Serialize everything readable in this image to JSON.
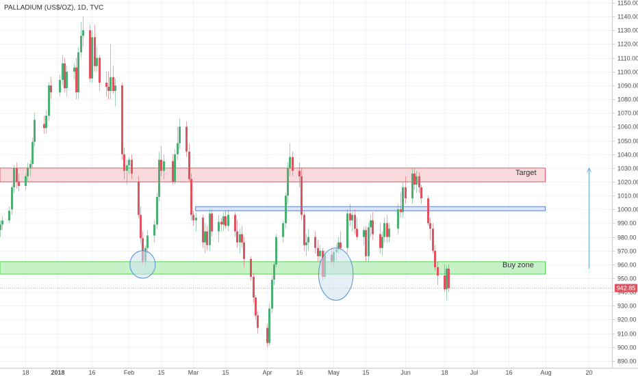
{
  "chart_title": "PALLADIUM (US$/OZ), 1D, TVC",
  "colors": {
    "up": "#4caf72",
    "down": "#e0525e",
    "grid": "#f0f3fa",
    "axis_text": "#4a4a4a",
    "target_fill": "#f7d4d6",
    "target_stroke": "#e05a64",
    "buy_fill": "#bdf0bd",
    "buy_stroke": "#4cd64c",
    "blue_fill": "#d6e2f7",
    "blue_stroke": "#5b83d6",
    "ellipse_fill": "#cfe2f3",
    "ellipse_stroke": "#4f8fd6",
    "arrow": "#6fa8dc",
    "price_tag": "#e0525e"
  },
  "annotations": {
    "target_label": "Target",
    "buy_zone_label": "Buy zone"
  },
  "chart_data": {
    "type": "candlestick",
    "title": "PALLADIUM (US$/OZ), 1D, TVC",
    "xlabel": "",
    "ylabel": "",
    "ylim": [
      885,
      1152
    ],
    "grid": true,
    "last_price": 942.85,
    "last_price_label": "942.85",
    "y_ticks": [
      890,
      900,
      910,
      920,
      930,
      940,
      950,
      960,
      970,
      980,
      990,
      1000,
      1010,
      1020,
      1030,
      1040,
      1050,
      1060,
      1070,
      1080,
      1090,
      1100,
      1110,
      1120,
      1130,
      1140,
      1150
    ],
    "y_tick_labels": [
      "890.00",
      "900.00",
      "910.00",
      "920.00",
      "930.00",
      "940.00",
      "950.00",
      "960.00",
      "970.00",
      "980.00",
      "990.00",
      "1000.00",
      "1010.00",
      "1020.00",
      "1030.00",
      "1040.00",
      "1050.00",
      "1060.00",
      "1070.00",
      "1080.00",
      "1090.00",
      "1100.00",
      "1110.00",
      "1120.00",
      "1130.00",
      "1140.00",
      "1150.00"
    ],
    "x_ticks": [
      {
        "date": "2017-12-18",
        "label": "18"
      },
      {
        "date": "2018-01-01",
        "label": "2018",
        "bold": true
      },
      {
        "date": "2018-01-16",
        "label": "16"
      },
      {
        "date": "2018-02-01",
        "label": "Feb"
      },
      {
        "date": "2018-02-15",
        "label": "15"
      },
      {
        "date": "2018-03-01",
        "label": "Mar"
      },
      {
        "date": "2018-03-15",
        "label": "15"
      },
      {
        "date": "2018-04-02",
        "label": "Apr"
      },
      {
        "date": "2018-04-16",
        "label": "16"
      },
      {
        "date": "2018-05-01",
        "label": "May"
      },
      {
        "date": "2018-05-15",
        "label": "15"
      },
      {
        "date": "2018-06-01",
        "label": "Jun"
      },
      {
        "date": "2018-06-18",
        "label": "18"
      },
      {
        "date": "2018-07-01",
        "label": "Jul"
      },
      {
        "date": "2018-07-16",
        "label": "16"
      },
      {
        "date": "2018-08-01",
        "label": "Aug"
      },
      {
        "date": "2018-08-20",
        "label": "20"
      }
    ],
    "x_domain": [
      "2017-12-07",
      "2018-08-30"
    ],
    "zones": [
      {
        "name": "target",
        "y_low": 1020,
        "y_high": 1030,
        "x_start": "2017-12-07",
        "x_end": "2018-08-01"
      },
      {
        "name": "resistance",
        "y_low": 999,
        "y_high": 1002,
        "x_start": "2018-03-02",
        "x_end": "2018-08-01"
      },
      {
        "name": "buy-zone",
        "y_low": 953,
        "y_high": 962,
        "x_start": "2017-12-07",
        "x_end": "2018-08-01"
      }
    ],
    "circles": [
      {
        "date": "2018-02-07",
        "price": 960,
        "date_radius_days": 5.5,
        "price_radius": 10
      },
      {
        "date": "2018-05-02",
        "price": 953,
        "date_radius_days": 7.5,
        "price_radius": 19
      }
    ],
    "target_arrow": {
      "date": "2018-08-20",
      "from": 957,
      "to": 1030
    },
    "candles": [
      {
        "d": "2017-12-07",
        "o": 985,
        "h": 992,
        "l": 980,
        "c": 989
      },
      {
        "d": "2017-12-08",
        "o": 989,
        "h": 995,
        "l": 985,
        "c": 992
      },
      {
        "d": "2017-12-11",
        "o": 992,
        "h": 1002,
        "l": 990,
        "c": 999
      },
      {
        "d": "2017-12-12",
        "o": 1000,
        "h": 1018,
        "l": 996,
        "c": 1016
      },
      {
        "d": "2017-12-13",
        "o": 1016,
        "h": 1032,
        "l": 1012,
        "c": 1030
      },
      {
        "d": "2017-12-14",
        "o": 1030,
        "h": 1034,
        "l": 1015,
        "c": 1020
      },
      {
        "d": "2017-12-15",
        "o": 1020,
        "h": 1026,
        "l": 1013,
        "c": 1017
      },
      {
        "d": "2017-12-18",
        "o": 1017,
        "h": 1026,
        "l": 1014,
        "c": 1024
      },
      {
        "d": "2017-12-19",
        "o": 1024,
        "h": 1034,
        "l": 1020,
        "c": 1030
      },
      {
        "d": "2017-12-20",
        "o": 1030,
        "h": 1036,
        "l": 1024,
        "c": 1033
      },
      {
        "d": "2017-12-21",
        "o": 1033,
        "h": 1052,
        "l": 1030,
        "c": 1049
      },
      {
        "d": "2017-12-22",
        "o": 1049,
        "h": 1070,
        "l": 1046,
        "c": 1065
      },
      {
        "d": "2017-12-26",
        "o": 1062,
        "h": 1068,
        "l": 1055,
        "c": 1059
      },
      {
        "d": "2017-12-27",
        "o": 1059,
        "h": 1072,
        "l": 1055,
        "c": 1068
      },
      {
        "d": "2017-12-28",
        "o": 1068,
        "h": 1092,
        "l": 1064,
        "c": 1090
      },
      {
        "d": "2017-12-29",
        "o": 1090,
        "h": 1096,
        "l": 1080,
        "c": 1085
      },
      {
        "d": "2018-01-02",
        "o": 1085,
        "h": 1098,
        "l": 1082,
        "c": 1094
      },
      {
        "d": "2018-01-03",
        "o": 1094,
        "h": 1112,
        "l": 1090,
        "c": 1106
      },
      {
        "d": "2018-01-04",
        "o": 1106,
        "h": 1110,
        "l": 1085,
        "c": 1088
      },
      {
        "d": "2018-01-05",
        "o": 1088,
        "h": 1104,
        "l": 1082,
        "c": 1100
      },
      {
        "d": "2018-01-08",
        "o": 1100,
        "h": 1106,
        "l": 1094,
        "c": 1103
      },
      {
        "d": "2018-01-09",
        "o": 1103,
        "h": 1110,
        "l": 1080,
        "c": 1085
      },
      {
        "d": "2018-01-10",
        "o": 1085,
        "h": 1118,
        "l": 1080,
        "c": 1114
      },
      {
        "d": "2018-01-11",
        "o": 1114,
        "h": 1136,
        "l": 1110,
        "c": 1126
      },
      {
        "d": "2018-01-12",
        "o": 1126,
        "h": 1140,
        "l": 1118,
        "c": 1130
      },
      {
        "d": "2018-01-15",
        "o": 1130,
        "h": 1134,
        "l": 1092,
        "c": 1095
      },
      {
        "d": "2018-01-16",
        "o": 1095,
        "h": 1130,
        "l": 1092,
        "c": 1125
      },
      {
        "d": "2018-01-17",
        "o": 1125,
        "h": 1134,
        "l": 1100,
        "c": 1104
      },
      {
        "d": "2018-01-18",
        "o": 1104,
        "h": 1118,
        "l": 1100,
        "c": 1110
      },
      {
        "d": "2018-01-19",
        "o": 1110,
        "h": 1112,
        "l": 1086,
        "c": 1092
      },
      {
        "d": "2018-01-22",
        "o": 1092,
        "h": 1100,
        "l": 1082,
        "c": 1089
      },
      {
        "d": "2018-01-23",
        "o": 1089,
        "h": 1100,
        "l": 1080,
        "c": 1086
      },
      {
        "d": "2018-01-24",
        "o": 1086,
        "h": 1120,
        "l": 1080,
        "c": 1096
      },
      {
        "d": "2018-01-25",
        "o": 1096,
        "h": 1104,
        "l": 1084,
        "c": 1086
      },
      {
        "d": "2018-01-26",
        "o": 1086,
        "h": 1095,
        "l": 1075,
        "c": 1090
      },
      {
        "d": "2018-01-29",
        "o": 1090,
        "h": 1092,
        "l": 1036,
        "c": 1040
      },
      {
        "d": "2018-01-30",
        "o": 1040,
        "h": 1045,
        "l": 1022,
        "c": 1028
      },
      {
        "d": "2018-01-31",
        "o": 1028,
        "h": 1036,
        "l": 1018,
        "c": 1032
      },
      {
        "d": "2018-02-01",
        "o": 1032,
        "h": 1038,
        "l": 1026,
        "c": 1036
      },
      {
        "d": "2018-02-02",
        "o": 1036,
        "h": 1040,
        "l": 1022,
        "c": 1026
      },
      {
        "d": "2018-02-05",
        "o": 1020,
        "h": 1024,
        "l": 994,
        "c": 996
      },
      {
        "d": "2018-02-06",
        "o": 996,
        "h": 1002,
        "l": 975,
        "c": 979
      },
      {
        "d": "2018-02-07",
        "o": 979,
        "h": 984,
        "l": 960,
        "c": 962
      },
      {
        "d": "2018-02-08",
        "o": 962,
        "h": 974,
        "l": 958,
        "c": 972
      },
      {
        "d": "2018-02-09",
        "o": 972,
        "h": 985,
        "l": 968,
        "c": 981
      },
      {
        "d": "2018-02-12",
        "o": 981,
        "h": 992,
        "l": 976,
        "c": 989
      },
      {
        "d": "2018-02-13",
        "o": 989,
        "h": 1012,
        "l": 986,
        "c": 1009
      },
      {
        "d": "2018-02-14",
        "o": 1009,
        "h": 1042,
        "l": 1006,
        "c": 1036
      },
      {
        "d": "2018-02-15",
        "o": 1036,
        "h": 1046,
        "l": 1024,
        "c": 1028
      },
      {
        "d": "2018-02-16",
        "o": 1028,
        "h": 1040,
        "l": 1022,
        "c": 1035
      },
      {
        "d": "2018-02-20",
        "o": 1035,
        "h": 1040,
        "l": 1018,
        "c": 1020
      },
      {
        "d": "2018-02-21",
        "o": 1020,
        "h": 1044,
        "l": 1018,
        "c": 1040
      },
      {
        "d": "2018-02-22",
        "o": 1040,
        "h": 1060,
        "l": 1036,
        "c": 1048
      },
      {
        "d": "2018-02-23",
        "o": 1048,
        "h": 1066,
        "l": 1044,
        "c": 1060
      },
      {
        "d": "2018-02-26",
        "o": 1060,
        "h": 1064,
        "l": 1038,
        "c": 1042
      },
      {
        "d": "2018-02-27",
        "o": 1042,
        "h": 1048,
        "l": 1020,
        "c": 1022
      },
      {
        "d": "2018-02-28",
        "o": 1022,
        "h": 1026,
        "l": 992,
        "c": 996
      },
      {
        "d": "2018-03-01",
        "o": 996,
        "h": 999,
        "l": 988,
        "c": 992
      },
      {
        "d": "2018-03-02",
        "o": 992,
        "h": 998,
        "l": 984,
        "c": 994
      },
      {
        "d": "2018-03-05",
        "o": 994,
        "h": 996,
        "l": 972,
        "c": 976
      },
      {
        "d": "2018-03-06",
        "o": 976,
        "h": 990,
        "l": 968,
        "c": 984
      },
      {
        "d": "2018-03-07",
        "o": 984,
        "h": 988,
        "l": 970,
        "c": 974
      },
      {
        "d": "2018-03-08",
        "o": 974,
        "h": 1000,
        "l": 970,
        "c": 997
      },
      {
        "d": "2018-03-09",
        "o": 997,
        "h": 1000,
        "l": 980,
        "c": 984
      },
      {
        "d": "2018-03-12",
        "o": 984,
        "h": 996,
        "l": 976,
        "c": 991
      },
      {
        "d": "2018-03-13",
        "o": 991,
        "h": 994,
        "l": 984,
        "c": 989
      },
      {
        "d": "2018-03-14",
        "o": 989,
        "h": 998,
        "l": 984,
        "c": 995
      },
      {
        "d": "2018-03-15",
        "o": 995,
        "h": 999,
        "l": 986,
        "c": 988
      },
      {
        "d": "2018-03-16",
        "o": 988,
        "h": 1000,
        "l": 984,
        "c": 996
      },
      {
        "d": "2018-03-19",
        "o": 996,
        "h": 998,
        "l": 980,
        "c": 984
      },
      {
        "d": "2018-03-20",
        "o": 984,
        "h": 992,
        "l": 972,
        "c": 976
      },
      {
        "d": "2018-03-21",
        "o": 976,
        "h": 986,
        "l": 968,
        "c": 982
      },
      {
        "d": "2018-03-22",
        "o": 982,
        "h": 988,
        "l": 972,
        "c": 976
      },
      {
        "d": "2018-03-23",
        "o": 976,
        "h": 980,
        "l": 958,
        "c": 964
      },
      {
        "d": "2018-03-26",
        "o": 964,
        "h": 966,
        "l": 948,
        "c": 951
      },
      {
        "d": "2018-03-27",
        "o": 951,
        "h": 954,
        "l": 932,
        "c": 936
      },
      {
        "d": "2018-03-28",
        "o": 936,
        "h": 938,
        "l": 920,
        "c": 923
      },
      {
        "d": "2018-03-29",
        "o": 923,
        "h": 926,
        "l": 910,
        "c": 914
      },
      {
        "d": "2018-04-02",
        "o": 914,
        "h": 917,
        "l": 900,
        "c": 903
      },
      {
        "d": "2018-04-03",
        "o": 903,
        "h": 932,
        "l": 901,
        "c": 928
      },
      {
        "d": "2018-04-04",
        "o": 928,
        "h": 952,
        "l": 925,
        "c": 949
      },
      {
        "d": "2018-04-05",
        "o": 949,
        "h": 962,
        "l": 945,
        "c": 960
      },
      {
        "d": "2018-04-06",
        "o": 960,
        "h": 982,
        "l": 958,
        "c": 980
      },
      {
        "d": "2018-04-09",
        "o": 980,
        "h": 992,
        "l": 976,
        "c": 990
      },
      {
        "d": "2018-04-10",
        "o": 990,
        "h": 1012,
        "l": 986,
        "c": 1010
      },
      {
        "d": "2018-04-11",
        "o": 1010,
        "h": 1034,
        "l": 1004,
        "c": 1030
      },
      {
        "d": "2018-04-12",
        "o": 1030,
        "h": 1048,
        "l": 1024,
        "c": 1038
      },
      {
        "d": "2018-04-13",
        "o": 1038,
        "h": 1042,
        "l": 1024,
        "c": 1028
      },
      {
        "d": "2018-04-16",
        "o": 1028,
        "h": 1034,
        "l": 1016,
        "c": 1024
      },
      {
        "d": "2018-04-17",
        "o": 1024,
        "h": 1030,
        "l": 992,
        "c": 996
      },
      {
        "d": "2018-04-18",
        "o": 996,
        "h": 998,
        "l": 970,
        "c": 974
      },
      {
        "d": "2018-04-19",
        "o": 974,
        "h": 982,
        "l": 966,
        "c": 976
      },
      {
        "d": "2018-04-20",
        "o": 976,
        "h": 986,
        "l": 970,
        "c": 980
      },
      {
        "d": "2018-04-23",
        "o": 980,
        "h": 984,
        "l": 968,
        "c": 972
      },
      {
        "d": "2018-04-24",
        "o": 972,
        "h": 978,
        "l": 962,
        "c": 966
      },
      {
        "d": "2018-04-25",
        "o": 966,
        "h": 974,
        "l": 960,
        "c": 970
      },
      {
        "d": "2018-04-26",
        "o": 970,
        "h": 972,
        "l": 948,
        "c": 951
      },
      {
        "d": "2018-04-27",
        "o": 951,
        "h": 970,
        "l": 949,
        "c": 967
      },
      {
        "d": "2018-04-30",
        "o": 967,
        "h": 972,
        "l": 960,
        "c": 962
      },
      {
        "d": "2018-05-01",
        "o": 962,
        "h": 972,
        "l": 958,
        "c": 969
      },
      {
        "d": "2018-05-02",
        "o": 969,
        "h": 975,
        "l": 963,
        "c": 971
      },
      {
        "d": "2018-05-03",
        "o": 971,
        "h": 980,
        "l": 968,
        "c": 976
      },
      {
        "d": "2018-05-04",
        "o": 976,
        "h": 984,
        "l": 970,
        "c": 972
      },
      {
        "d": "2018-05-07",
        "o": 972,
        "h": 1000,
        "l": 968,
        "c": 997
      },
      {
        "d": "2018-05-08",
        "o": 997,
        "h": 1004,
        "l": 988,
        "c": 992
      },
      {
        "d": "2018-05-09",
        "o": 992,
        "h": 998,
        "l": 984,
        "c": 996
      },
      {
        "d": "2018-05-10",
        "o": 996,
        "h": 1000,
        "l": 982,
        "c": 986
      },
      {
        "d": "2018-05-11",
        "o": 986,
        "h": 994,
        "l": 978,
        "c": 980
      },
      {
        "d": "2018-05-14",
        "o": 980,
        "h": 988,
        "l": 974,
        "c": 985
      },
      {
        "d": "2018-05-15",
        "o": 985,
        "h": 988,
        "l": 962,
        "c": 966
      },
      {
        "d": "2018-05-16",
        "o": 966,
        "h": 990,
        "l": 962,
        "c": 987
      },
      {
        "d": "2018-05-17",
        "o": 987,
        "h": 996,
        "l": 980,
        "c": 992
      },
      {
        "d": "2018-05-18",
        "o": 992,
        "h": 998,
        "l": 978,
        "c": 982
      },
      {
        "d": "2018-05-21",
        "o": 982,
        "h": 990,
        "l": 968,
        "c": 972
      },
      {
        "d": "2018-05-22",
        "o": 972,
        "h": 984,
        "l": 966,
        "c": 980
      },
      {
        "d": "2018-05-23",
        "o": 980,
        "h": 994,
        "l": 976,
        "c": 990
      },
      {
        "d": "2018-05-24",
        "o": 990,
        "h": 996,
        "l": 976,
        "c": 980
      },
      {
        "d": "2018-05-25",
        "o": 980,
        "h": 990,
        "l": 976,
        "c": 986
      },
      {
        "d": "2018-05-29",
        "o": 986,
        "h": 1004,
        "l": 982,
        "c": 1000
      },
      {
        "d": "2018-05-30",
        "o": 1000,
        "h": 1012,
        "l": 994,
        "c": 998
      },
      {
        "d": "2018-05-31",
        "o": 998,
        "h": 1020,
        "l": 994,
        "c": 1016
      },
      {
        "d": "2018-06-01",
        "o": 1016,
        "h": 1024,
        "l": 1004,
        "c": 1008
      },
      {
        "d": "2018-06-04",
        "o": 1008,
        "h": 1030,
        "l": 1004,
        "c": 1026
      },
      {
        "d": "2018-06-05",
        "o": 1026,
        "h": 1030,
        "l": 1014,
        "c": 1018
      },
      {
        "d": "2018-06-06",
        "o": 1018,
        "h": 1028,
        "l": 1012,
        "c": 1024
      },
      {
        "d": "2018-06-07",
        "o": 1024,
        "h": 1027,
        "l": 1012,
        "c": 1016
      },
      {
        "d": "2018-06-08",
        "o": 1016,
        "h": 1018,
        "l": 1004,
        "c": 1008
      },
      {
        "d": "2018-06-11",
        "o": 1008,
        "h": 1010,
        "l": 988,
        "c": 990
      },
      {
        "d": "2018-06-12",
        "o": 990,
        "h": 994,
        "l": 978,
        "c": 986
      },
      {
        "d": "2018-06-13",
        "o": 986,
        "h": 990,
        "l": 968,
        "c": 970
      },
      {
        "d": "2018-06-14",
        "o": 970,
        "h": 974,
        "l": 955,
        "c": 958
      },
      {
        "d": "2018-06-15",
        "o": 958,
        "h": 962,
        "l": 945,
        "c": 952
      },
      {
        "d": "2018-06-18",
        "o": 952,
        "h": 960,
        "l": 940,
        "c": 942
      },
      {
        "d": "2018-06-19",
        "o": 942,
        "h": 959,
        "l": 934,
        "c": 957
      },
      {
        "d": "2018-06-20",
        "o": 957,
        "h": 960,
        "l": 940,
        "c": 942.85
      }
    ]
  }
}
